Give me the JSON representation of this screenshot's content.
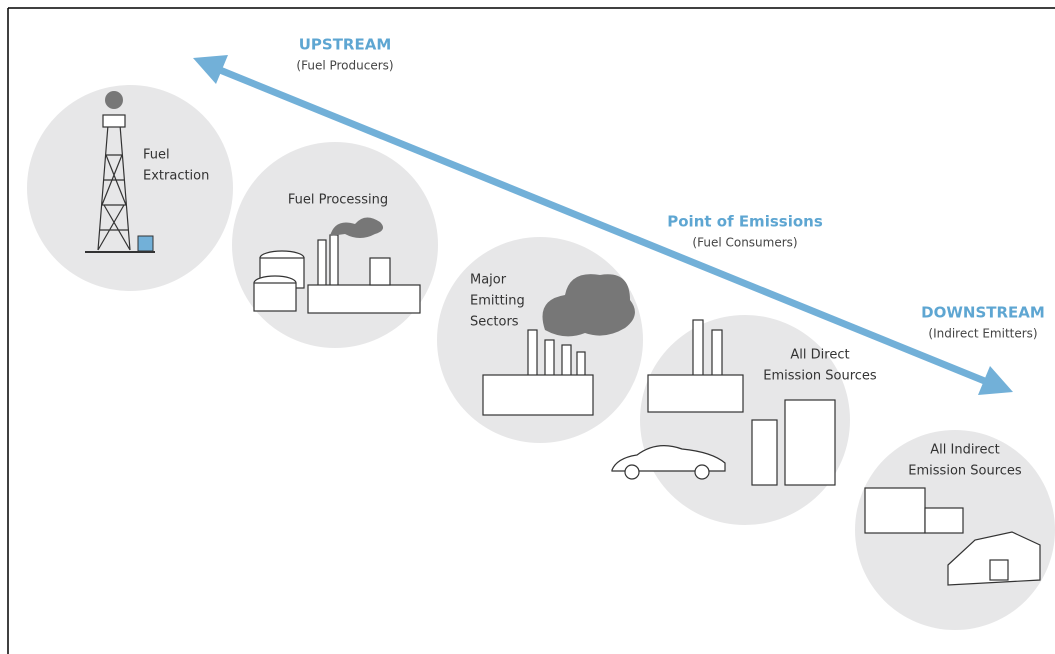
{
  "upstream": {
    "title": "UPSTREAM",
    "subtitle": "(Fuel Producers)"
  },
  "point_of_emissions": {
    "title": "Point of Emissions",
    "subtitle": "(Fuel Consumers)"
  },
  "downstream": {
    "title": "DOWNSTREAM",
    "subtitle": "(Indirect Emitters)"
  },
  "nodes": [
    {
      "lines": [
        "Fuel",
        "Extraction"
      ]
    },
    {
      "lines": [
        "Fuel Processing"
      ]
    },
    {
      "lines": [
        "Major",
        "Emitting",
        "Sectors"
      ]
    },
    {
      "lines": [
        "All Direct",
        "Emission Sources"
      ]
    },
    {
      "lines": [
        "All Indirect",
        "Emission Sources"
      ]
    }
  ]
}
